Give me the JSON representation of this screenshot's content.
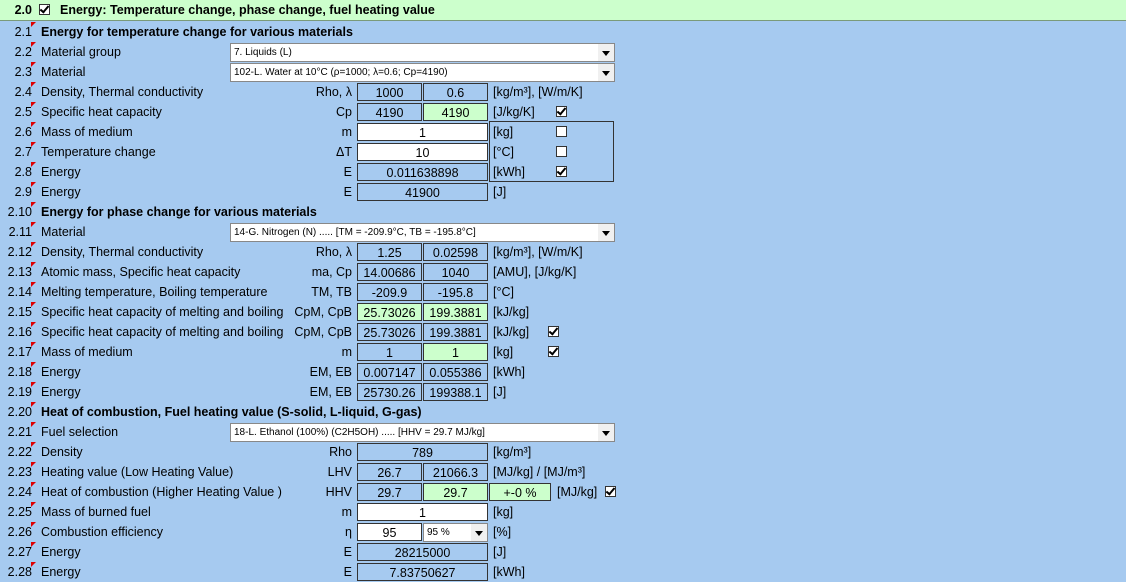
{
  "header": {
    "num": "2.0",
    "checked": true,
    "title": "Energy: Temperature change, phase change, fuel heating value"
  },
  "rows": [
    {
      "num": "2.1",
      "section": "Energy for temperature change for various materials"
    },
    {
      "num": "2.2",
      "label": "Material group",
      "dropdown": "7. Liquids (L)"
    },
    {
      "num": "2.3",
      "label": "Material",
      "dropdown": "102-L.  Water at 10°C (ρ=1000;  λ=0.6;  Cp=4190)"
    },
    {
      "num": "2.4",
      "label": "Density, Thermal conductivity",
      "symbol": "Rho, λ",
      "cells": [
        "1000",
        "0.6"
      ],
      "unit": "[kg/m³], [W/m/K]"
    },
    {
      "num": "2.5",
      "label": "Specific heat capacity",
      "symbol": "Cp",
      "cells": [
        "4190",
        "4190"
      ],
      "unit": "[J/kg/K]",
      "checked": true
    },
    {
      "num": "2.6",
      "label": "Mass of medium",
      "symbol": "m",
      "cells": [
        "1"
      ],
      "unit": "[kg]",
      "checked": false
    },
    {
      "num": "2.7",
      "label": "Temperature change",
      "symbol": "ΔT",
      "cells": [
        "10"
      ],
      "unit": "[°C]",
      "checked": false
    },
    {
      "num": "2.8",
      "label": "Energy",
      "symbol": "E",
      "cells": [
        "0.011638898"
      ],
      "unit": "[kWh]",
      "checked": true
    },
    {
      "num": "2.9",
      "label": "Energy",
      "symbol": "E",
      "cells": [
        "41900"
      ],
      "unit": "[J]"
    },
    {
      "num": "2.10",
      "section": "Energy for phase change for various materials"
    },
    {
      "num": "2.11",
      "label": "Material",
      "dropdown": "14-G. Nitrogen (N) ..... [TM = -209.9°C, TB = -195.8°C]"
    },
    {
      "num": "2.12",
      "label": "Density, Thermal conductivity",
      "symbol": "Rho, λ",
      "cells": [
        "1.25",
        "0.02598"
      ],
      "unit": "[kg/m³], [W/m/K]"
    },
    {
      "num": "2.13",
      "label": "Atomic mass, Specific heat capacity",
      "symbol": "ma, Cp",
      "cells": [
        "14.00686",
        "1040"
      ],
      "unit": "[AMU], [J/kg/K]"
    },
    {
      "num": "2.14",
      "label": "Melting temperature, Boiling temperature",
      "symbol": "TM, TB",
      "cells": [
        "-209.9",
        "-195.8"
      ],
      "unit": "[°C]"
    },
    {
      "num": "2.15",
      "label": "Specific heat capacity of melting and boiling",
      "symbol": "CpM, CpB",
      "cells": [
        "25.73026",
        "199.3881"
      ],
      "unit": "[kJ/kg]"
    },
    {
      "num": "2.16",
      "label": "Specific heat capacity of melting and boiling",
      "symbol": "CpM, CpB",
      "cells": [
        "25.73026",
        "199.3881"
      ],
      "unit": "[kJ/kg]",
      "checked": true
    },
    {
      "num": "2.17",
      "label": "Mass of medium",
      "symbol": "m",
      "cells": [
        "1",
        "1"
      ],
      "unit": "[kg]",
      "checked": true
    },
    {
      "num": "2.18",
      "label": "Energy",
      "symbol": "EM, EB",
      "cells": [
        "0.007147",
        "0.055386"
      ],
      "unit": "[kWh]"
    },
    {
      "num": "2.19",
      "label": "Energy",
      "symbol": "EM, EB",
      "cells": [
        "25730.26",
        "199388.1"
      ],
      "unit": "[J]"
    },
    {
      "num": "2.20",
      "section": "Heat of combustion, Fuel heating value  (S-solid, L-liquid, G-gas)"
    },
    {
      "num": "2.21",
      "label": "Fuel selection",
      "dropdown": "18-L. Ethanol (100%) (C2H5OH) ..... [HHV = 29.7 MJ/kg]"
    },
    {
      "num": "2.22",
      "label": "Density",
      "symbol": "Rho",
      "cells": [
        "789"
      ],
      "unit": "[kg/m³]"
    },
    {
      "num": "2.23",
      "label": "Heating value (Low Heating Value)",
      "symbol": "LHV",
      "cells": [
        "26.7",
        "21066.3"
      ],
      "unit": "[MJ/kg] / [MJ/m³]"
    },
    {
      "num": "2.24",
      "label": "Heat of combustion (Higher Heating Value )",
      "symbol": "HHV",
      "cells": [
        "29.7",
        "29.7",
        "+-0 %"
      ],
      "unit": "[MJ/kg]",
      "checked": true
    },
    {
      "num": "2.25",
      "label": "Mass of burned fuel",
      "symbol": "m",
      "cells": [
        "1"
      ],
      "unit": "[kg]"
    },
    {
      "num": "2.26",
      "label": "Combustion efficiency",
      "symbol": "η",
      "cells": [
        "95"
      ],
      "dropdown": "95 %",
      "unit": "[%]"
    },
    {
      "num": "2.27",
      "label": "Energy",
      "symbol": "E",
      "cells": [
        "28215000"
      ],
      "unit": "[J]"
    },
    {
      "num": "2.28",
      "label": "Energy",
      "symbol": "E",
      "cells": [
        "7.83750627"
      ],
      "unit": "[kWh]"
    }
  ]
}
